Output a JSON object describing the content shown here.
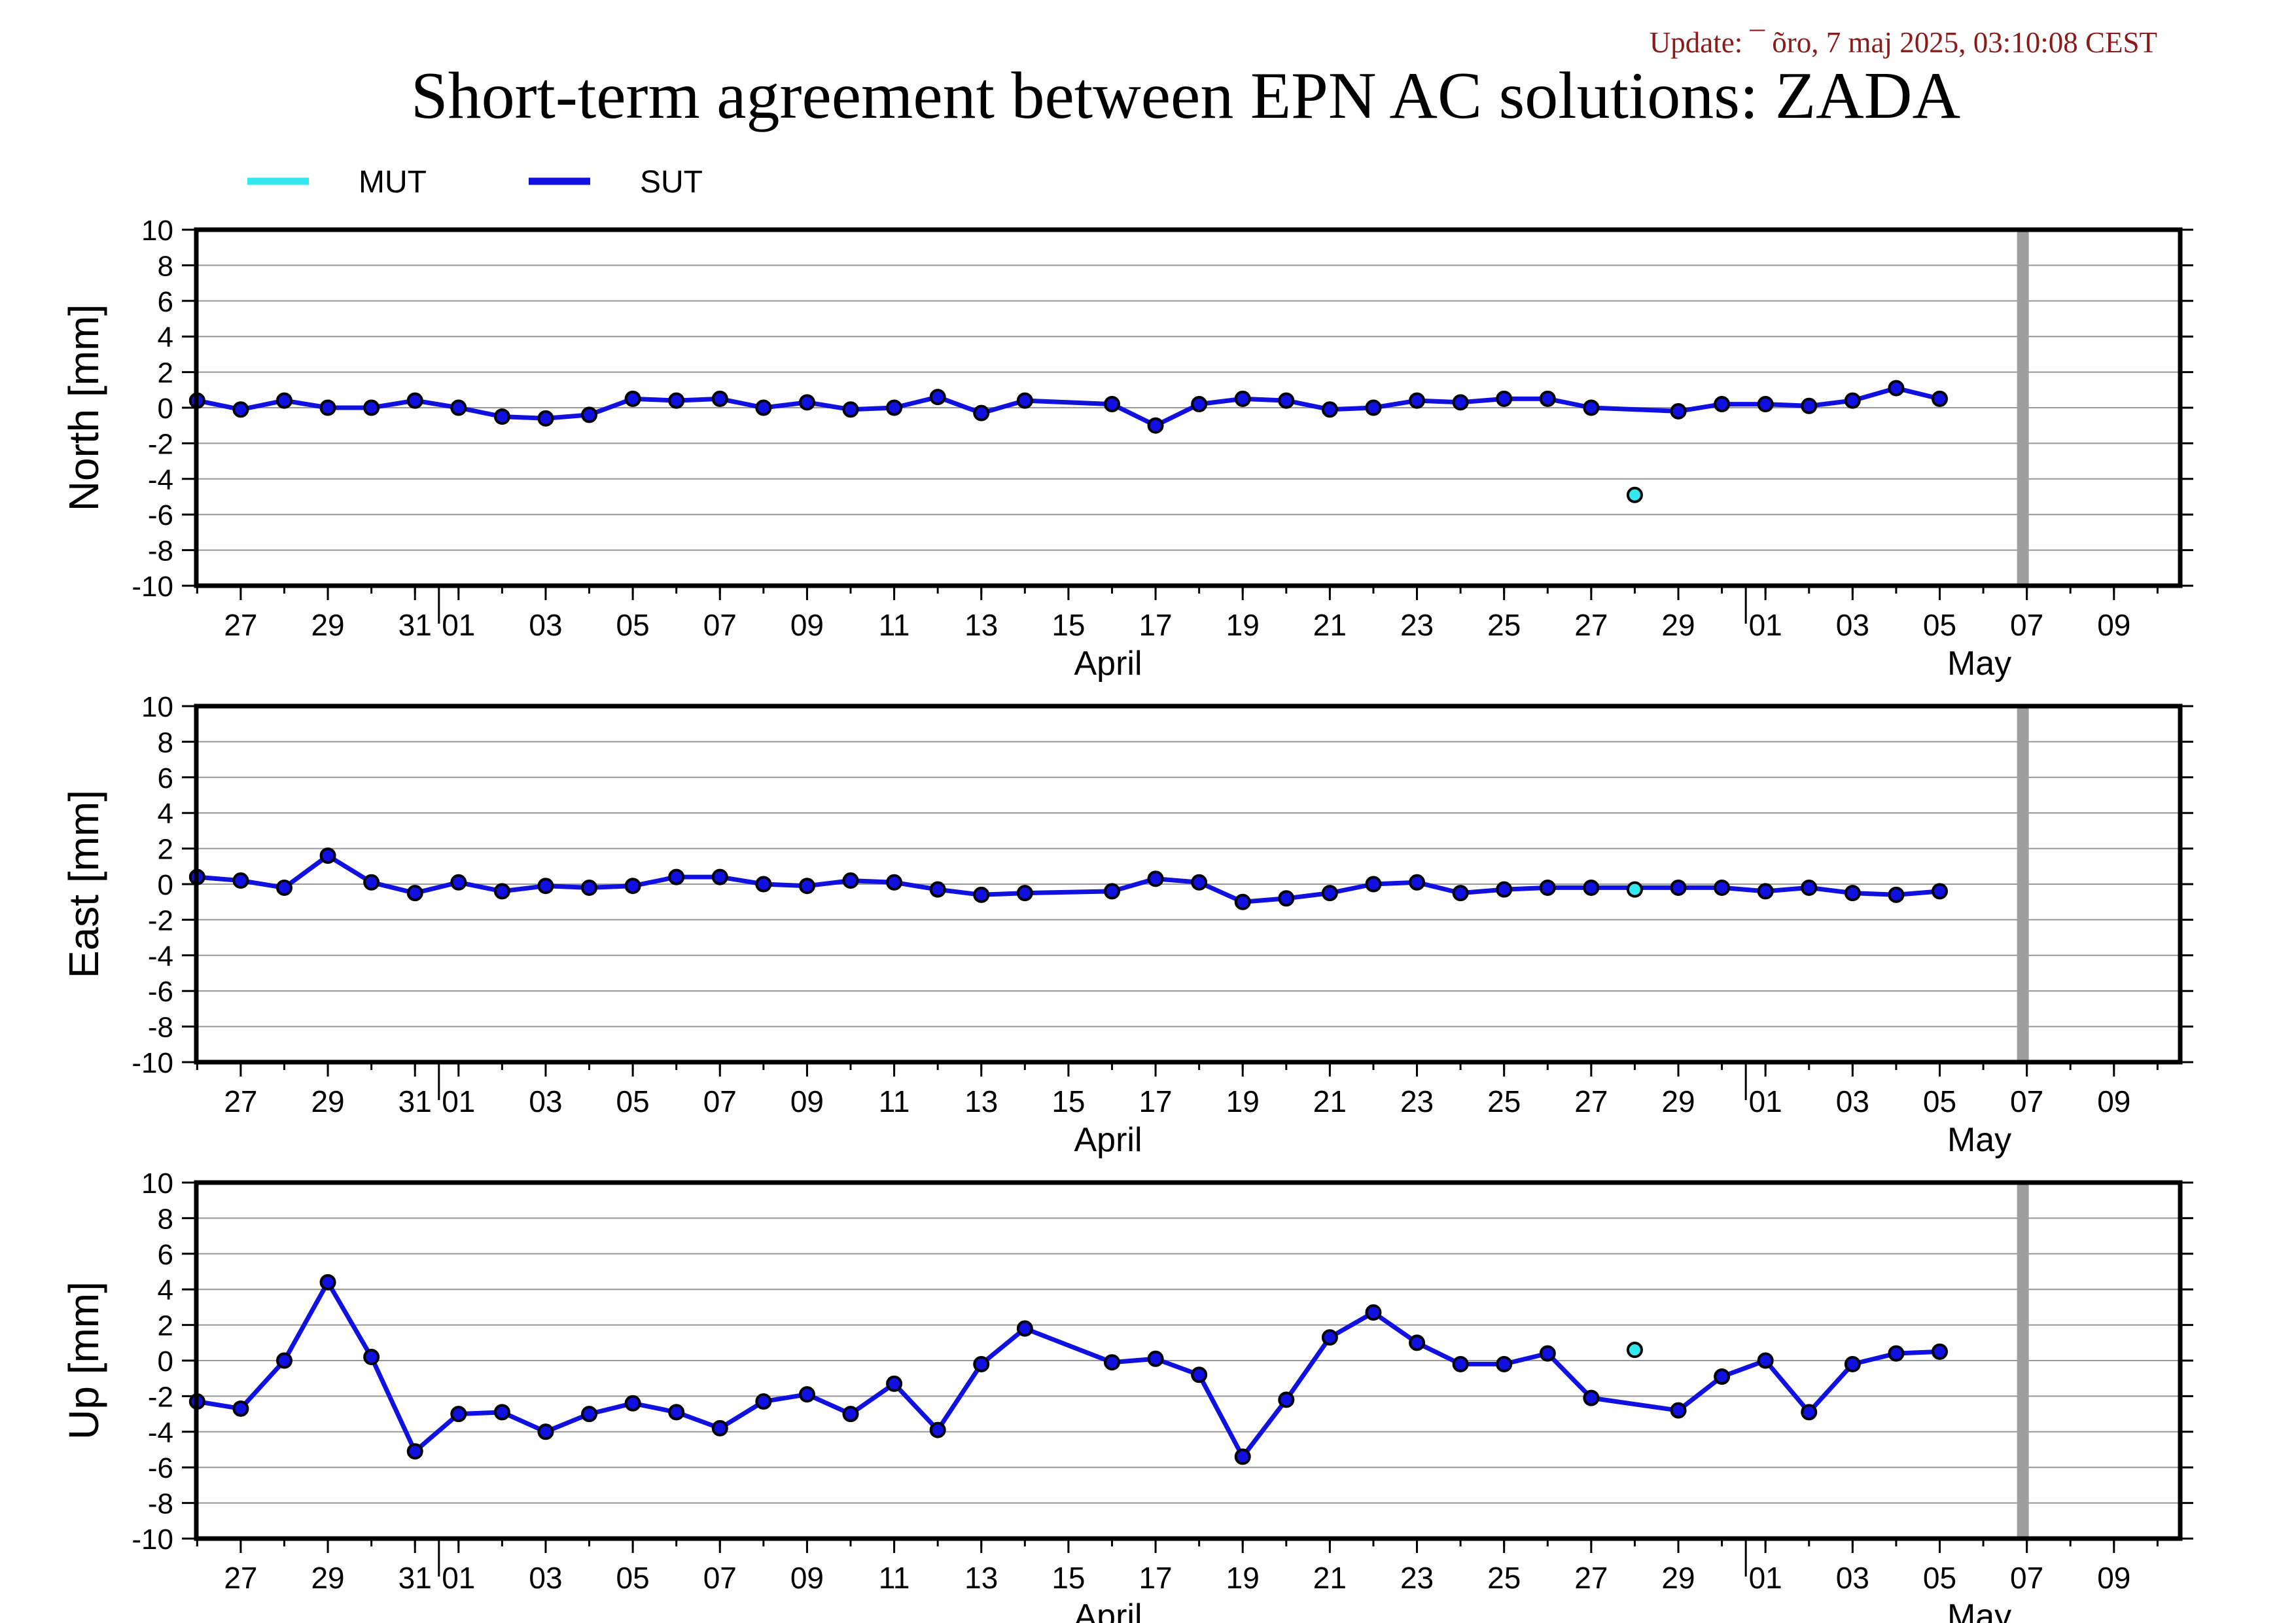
{
  "update_text": "Update: ¯ õro, 7 maj 2025, 03:10:08 CEST",
  "title": "Short-term agreement between EPN AC solutions: ZADA",
  "colors": {
    "mut": "#33e8f0",
    "sut": "#1010e0",
    "update": "#8b1a1a",
    "grid": "#999999",
    "current_day_bar": "#9e9e9e"
  },
  "chart_data": {
    "type": "line",
    "legend": {
      "placement": "top-left",
      "entries": [
        {
          "name": "MUT",
          "color": "#33e8f0"
        },
        {
          "name": "SUT",
          "color": "#1010e0"
        }
      ]
    },
    "x_axis": {
      "start": "2025-03-26",
      "end": "2025-05-10",
      "ticks": [
        {
          "date": "2025-03-27",
          "label": "27"
        },
        {
          "date": "2025-03-29",
          "label": "29"
        },
        {
          "date": "2025-03-31",
          "label": "31"
        },
        {
          "date": "2025-04-01",
          "label": "01"
        },
        {
          "date": "2025-04-03",
          "label": "03"
        },
        {
          "date": "2025-04-05",
          "label": "05"
        },
        {
          "date": "2025-04-07",
          "label": "07"
        },
        {
          "date": "2025-04-09",
          "label": "09"
        },
        {
          "date": "2025-04-11",
          "label": "11"
        },
        {
          "date": "2025-04-13",
          "label": "13"
        },
        {
          "date": "2025-04-15",
          "label": "15"
        },
        {
          "date": "2025-04-17",
          "label": "17"
        },
        {
          "date": "2025-04-19",
          "label": "19"
        },
        {
          "date": "2025-04-21",
          "label": "21"
        },
        {
          "date": "2025-04-23",
          "label": "23"
        },
        {
          "date": "2025-04-25",
          "label": "25"
        },
        {
          "date": "2025-04-27",
          "label": "27"
        },
        {
          "date": "2025-04-29",
          "label": "29"
        },
        {
          "date": "2025-05-01",
          "label": "01"
        },
        {
          "date": "2025-05-03",
          "label": "03"
        },
        {
          "date": "2025-05-05",
          "label": "05"
        },
        {
          "date": "2025-05-07",
          "label": "07"
        },
        {
          "date": "2025-05-09",
          "label": "09"
        }
      ],
      "month_boundaries": [
        "2025-04-01",
        "2025-05-01"
      ],
      "month_labels": [
        {
          "date": "2025-04-16",
          "label": "April"
        },
        {
          "date": "2025-05-06",
          "label": "May"
        }
      ],
      "current_day_marker": "2025-05-07"
    },
    "panels": [
      {
        "ylabel": "North [mm]",
        "ylim": [
          -10,
          10
        ],
        "yticks": [
          10,
          8,
          6,
          4,
          2,
          0,
          -2,
          -4,
          -6,
          -8,
          -10
        ],
        "grid": true,
        "series": [
          {
            "name": "SUT",
            "points": [
              [
                "2025-03-26",
                0.4
              ],
              [
                "2025-03-27",
                -0.1
              ],
              [
                "2025-03-28",
                0.4
              ],
              [
                "2025-03-29",
                0.0
              ],
              [
                "2025-03-30",
                0.0
              ],
              [
                "2025-03-31",
                0.4
              ],
              [
                "2025-04-01",
                0.0
              ],
              [
                "2025-04-02",
                -0.5
              ],
              [
                "2025-04-03",
                -0.6
              ],
              [
                "2025-04-04",
                -0.4
              ],
              [
                "2025-04-05",
                0.5
              ],
              [
                "2025-04-06",
                0.4
              ],
              [
                "2025-04-07",
                0.5
              ],
              [
                "2025-04-08",
                0.0
              ],
              [
                "2025-04-09",
                0.3
              ],
              [
                "2025-04-10",
                -0.1
              ],
              [
                "2025-04-11",
                0.0
              ],
              [
                "2025-04-12",
                0.6
              ],
              [
                "2025-04-13",
                -0.3
              ],
              [
                "2025-04-14",
                0.4
              ],
              [
                "2025-04-16",
                0.2
              ],
              [
                "2025-04-17",
                -1.0
              ],
              [
                "2025-04-18",
                0.2
              ],
              [
                "2025-04-19",
                0.5
              ],
              [
                "2025-04-20",
                0.4
              ],
              [
                "2025-04-21",
                -0.1
              ],
              [
                "2025-04-22",
                0.0
              ],
              [
                "2025-04-23",
                0.4
              ],
              [
                "2025-04-24",
                0.3
              ],
              [
                "2025-04-25",
                0.5
              ],
              [
                "2025-04-26",
                0.5
              ],
              [
                "2025-04-27",
                0.0
              ],
              [
                "2025-04-29",
                -0.2
              ],
              [
                "2025-04-30",
                0.2
              ],
              [
                "2025-05-01",
                0.2
              ],
              [
                "2025-05-02",
                0.1
              ],
              [
                "2025-05-03",
                0.4
              ],
              [
                "2025-05-04",
                1.1
              ],
              [
                "2025-05-05",
                0.5
              ]
            ]
          },
          {
            "name": "MUT",
            "points": [
              [
                "2025-04-28",
                -4.9
              ]
            ]
          }
        ]
      },
      {
        "ylabel": "East [mm]",
        "ylim": [
          -10,
          10
        ],
        "yticks": [
          10,
          8,
          6,
          4,
          2,
          0,
          -2,
          -4,
          -6,
          -8,
          -10
        ],
        "grid": true,
        "series": [
          {
            "name": "SUT",
            "points": [
              [
                "2025-03-26",
                0.4
              ],
              [
                "2025-03-27",
                0.2
              ],
              [
                "2025-03-28",
                -0.2
              ],
              [
                "2025-03-29",
                1.6
              ],
              [
                "2025-03-30",
                0.1
              ],
              [
                "2025-03-31",
                -0.5
              ],
              [
                "2025-04-01",
                0.1
              ],
              [
                "2025-04-02",
                -0.4
              ],
              [
                "2025-04-03",
                -0.1
              ],
              [
                "2025-04-04",
                -0.2
              ],
              [
                "2025-04-05",
                -0.1
              ],
              [
                "2025-04-06",
                0.4
              ],
              [
                "2025-04-07",
                0.4
              ],
              [
                "2025-04-08",
                0.0
              ],
              [
                "2025-04-09",
                -0.1
              ],
              [
                "2025-04-10",
                0.2
              ],
              [
                "2025-04-11",
                0.1
              ],
              [
                "2025-04-12",
                -0.3
              ],
              [
                "2025-04-13",
                -0.6
              ],
              [
                "2025-04-14",
                -0.5
              ],
              [
                "2025-04-16",
                -0.4
              ],
              [
                "2025-04-17",
                0.3
              ],
              [
                "2025-04-18",
                0.1
              ],
              [
                "2025-04-19",
                -1.0
              ],
              [
                "2025-04-20",
                -0.8
              ],
              [
                "2025-04-21",
                -0.5
              ],
              [
                "2025-04-22",
                0.0
              ],
              [
                "2025-04-23",
                0.1
              ],
              [
                "2025-04-24",
                -0.5
              ],
              [
                "2025-04-25",
                -0.3
              ],
              [
                "2025-04-26",
                -0.2
              ],
              [
                "2025-04-27",
                -0.2
              ],
              [
                "2025-04-29",
                -0.2
              ],
              [
                "2025-04-30",
                -0.2
              ],
              [
                "2025-05-01",
                -0.4
              ],
              [
                "2025-05-02",
                -0.2
              ],
              [
                "2025-05-03",
                -0.5
              ],
              [
                "2025-05-04",
                -0.6
              ],
              [
                "2025-05-05",
                -0.4
              ]
            ]
          },
          {
            "name": "MUT",
            "points": [
              [
                "2025-04-28",
                -0.3
              ]
            ]
          }
        ]
      },
      {
        "ylabel": "Up [mm]",
        "ylim": [
          -10,
          10
        ],
        "yticks": [
          10,
          8,
          6,
          4,
          2,
          0,
          -2,
          -4,
          -6,
          -8,
          -10
        ],
        "grid": true,
        "series": [
          {
            "name": "SUT",
            "points": [
              [
                "2025-03-26",
                -2.3
              ],
              [
                "2025-03-27",
                -2.7
              ],
              [
                "2025-03-28",
                0.0
              ],
              [
                "2025-03-29",
                4.4
              ],
              [
                "2025-03-30",
                0.2
              ],
              [
                "2025-03-31",
                -5.1
              ],
              [
                "2025-04-01",
                -3.0
              ],
              [
                "2025-04-02",
                -2.9
              ],
              [
                "2025-04-03",
                -4.0
              ],
              [
                "2025-04-04",
                -3.0
              ],
              [
                "2025-04-05",
                -2.4
              ],
              [
                "2025-04-06",
                -2.9
              ],
              [
                "2025-04-07",
                -3.8
              ],
              [
                "2025-04-08",
                -2.3
              ],
              [
                "2025-04-09",
                -1.9
              ],
              [
                "2025-04-10",
                -3.0
              ],
              [
                "2025-04-11",
                -1.3
              ],
              [
                "2025-04-12",
                -3.9
              ],
              [
                "2025-04-13",
                -0.2
              ],
              [
                "2025-04-14",
                1.8
              ],
              [
                "2025-04-16",
                -0.1
              ],
              [
                "2025-04-17",
                0.1
              ],
              [
                "2025-04-18",
                -0.8
              ],
              [
                "2025-04-19",
                -5.4
              ],
              [
                "2025-04-20",
                -2.2
              ],
              [
                "2025-04-21",
                1.3
              ],
              [
                "2025-04-22",
                2.7
              ],
              [
                "2025-04-23",
                1.0
              ],
              [
                "2025-04-24",
                -0.2
              ],
              [
                "2025-04-25",
                -0.2
              ],
              [
                "2025-04-26",
                0.4
              ],
              [
                "2025-04-27",
                -2.1
              ],
              [
                "2025-04-29",
                -2.8
              ],
              [
                "2025-04-30",
                -0.9
              ],
              [
                "2025-05-01",
                0.0
              ],
              [
                "2025-05-02",
                -2.9
              ],
              [
                "2025-05-03",
                -0.2
              ],
              [
                "2025-05-04",
                0.4
              ],
              [
                "2025-05-05",
                0.5
              ]
            ]
          },
          {
            "name": "MUT",
            "points": [
              [
                "2025-04-28",
                0.6
              ]
            ]
          }
        ]
      }
    ]
  }
}
